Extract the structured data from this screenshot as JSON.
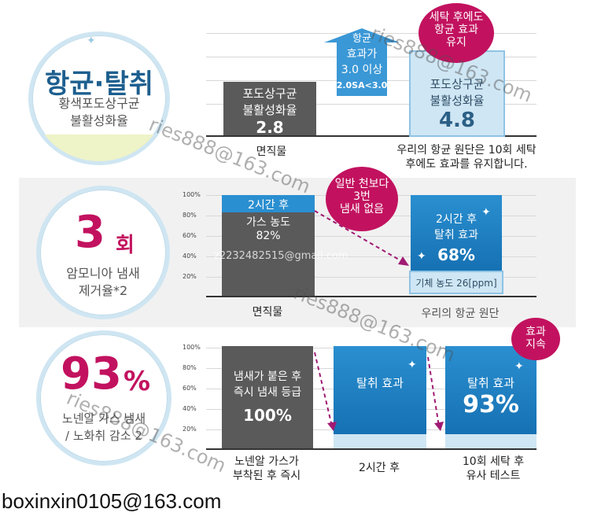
{
  "section1": {
    "circle_title": "항균·탈취",
    "circle_sub1": "황색포도상구균",
    "circle_sub2": "불활성화율",
    "left_bar_line1": "포도상구균",
    "left_bar_line2": "불활성화율",
    "left_value": "2.8",
    "left_caption": "면직물",
    "arrow_line1": "항균",
    "arrow_line2": "효과가",
    "arrow_line3": "3.0 이상",
    "arrow_range": "2.0SA<3.0",
    "bubble_line1": "세탁 후에도",
    "bubble_line2": "항균 효과",
    "bubble_line3": "유지",
    "right_bar_line1": "포도상구균",
    "right_bar_line2": "불활성화율",
    "right_value": "4.8",
    "right_caption1": "우리의 항균 원단은 10회 세탁",
    "right_caption2": "후에도 효과를 유지합니다."
  },
  "section2": {
    "circle_big": "3",
    "circle_unit": "회",
    "circle_sub1": "암모니아 냄새",
    "circle_sub2": "제거율*2",
    "ticks": [
      "100%",
      "80%",
      "60%",
      "40%",
      "20%"
    ],
    "left_line1": "2시간 후",
    "left_line2": "가스 농도",
    "left_line3": "82%",
    "bubble_line1": "일반 천보다",
    "bubble_line2": "3번",
    "bubble_line3": "냄새 없음",
    "right_line1": "2시간 후",
    "right_line2": "탈취 효과",
    "right_value": "68%",
    "gas_label": "기체 농도 26[ppm]",
    "left_caption": "면직물",
    "right_caption": "우리의 항균 원단",
    "left_gas_percent": 82,
    "right_effect_percent": 68
  },
  "section3": {
    "circle_big": "93",
    "circle_unit": "%",
    "circle_sub1": "노넨알 가스 냄새",
    "circle_sub2": "/ 노화취 감소 2",
    "ticks": [
      "100%",
      "80%",
      "60%",
      "40%",
      "20%"
    ],
    "bar1_line1": "냄새가 붙은 후",
    "bar1_line2": "즉시 냄새 등급",
    "bar1_value": "100%",
    "bar2_label": "탈취 효과",
    "bar3_label": "탈취 효과",
    "bar3_value": "93%",
    "bubble_line1": "효과",
    "bubble_line2": "지속",
    "cap1_line1": "노넨알 가스가",
    "cap1_line2": "부착된 후 즉시",
    "cap2": "2시간 후",
    "cap3_line1": "10회 세탁 후",
    "cap3_line2": "유사 테스트"
  },
  "watermarks": {
    "w1": "ries888@163.com",
    "w2": "ries888@163.com",
    "w3": "z2232482515@gmail.com",
    "w4": "ries888@163.com",
    "w5": "ries888@163.com"
  },
  "footer_email": "boxinxin0105@163.com",
  "colors": {
    "accent_magenta": "#c2125f",
    "blue": "#1f7fc2",
    "gray_bar": "#5a5a5a"
  }
}
